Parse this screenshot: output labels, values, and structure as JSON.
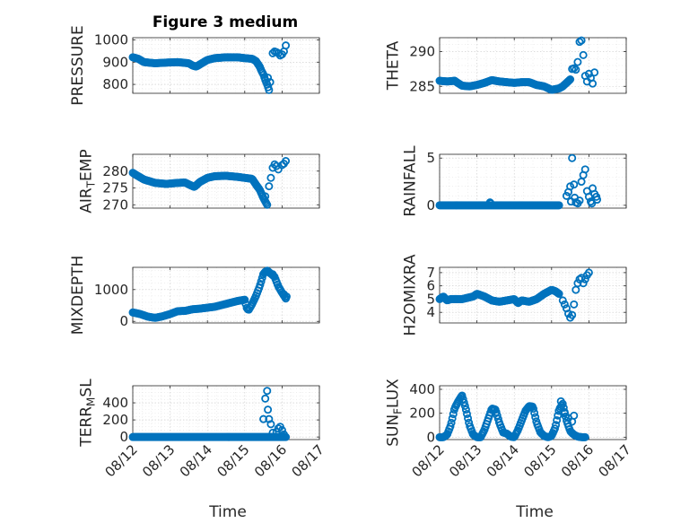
{
  "figure_title": "Figure 3 medium",
  "colors": {
    "marker": "#0072BD",
    "axis": "#262626"
  },
  "chart_data": [
    {
      "type": "scatter",
      "name": "pressure",
      "ylabel": "PRESSURE",
      "title": "Figure 3 medium",
      "ylim": [
        760,
        1010
      ],
      "yticks": [
        800,
        900,
        1000
      ],
      "ytick_labels": [
        "800",
        "900",
        "1000"
      ],
      "xlim_days": [
        0,
        5
      ],
      "xticks": [
        0,
        1,
        2,
        3,
        4,
        5
      ],
      "xtick_labels": [],
      "xlabel": "",
      "grid": true,
      "knots": [
        [
          0,
          922
        ],
        [
          0.15,
          915
        ],
        [
          0.3,
          900
        ],
        [
          0.6,
          895
        ],
        [
          0.9,
          898
        ],
        [
          1.2,
          900
        ],
        [
          1.5,
          895
        ],
        [
          1.6,
          885
        ],
        [
          1.7,
          880
        ],
        [
          1.85,
          895
        ],
        [
          2.0,
          910
        ],
        [
          2.2,
          918
        ],
        [
          2.5,
          922
        ],
        [
          2.8,
          922
        ],
        [
          3.0,
          918
        ],
        [
          3.2,
          915
        ],
        [
          3.3,
          905
        ],
        [
          3.4,
          880
        ],
        [
          3.45,
          860
        ],
        [
          3.5,
          845
        ],
        [
          3.55,
          820
        ],
        [
          3.6,
          800
        ],
        [
          3.65,
          775
        ]
      ],
      "n": 150,
      "extra_points": [
        [
          3.62,
          830
        ],
        [
          3.68,
          810
        ],
        [
          3.75,
          940
        ],
        [
          3.8,
          948
        ],
        [
          3.85,
          945
        ],
        [
          3.9,
          940
        ],
        [
          3.95,
          930
        ],
        [
          4.0,
          935
        ],
        [
          4.05,
          948
        ],
        [
          4.1,
          975
        ]
      ]
    },
    {
      "type": "scatter",
      "name": "theta",
      "ylabel": "THETA",
      "ylim": [
        284,
        292
      ],
      "yticks": [
        285,
        290
      ],
      "ytick_labels": [
        "285",
        "290"
      ],
      "xlim_days": [
        0,
        5
      ],
      "xticks": [
        0,
        1,
        2,
        3,
        4,
        5
      ],
      "xtick_labels": [],
      "xlabel": "",
      "grid": true,
      "knots": [
        [
          0,
          285.8
        ],
        [
          0.2,
          285.7
        ],
        [
          0.4,
          285.8
        ],
        [
          0.6,
          285.1
        ],
        [
          0.8,
          285.0
        ],
        [
          1.0,
          285.2
        ],
        [
          1.2,
          285.5
        ],
        [
          1.4,
          285.9
        ],
        [
          1.6,
          285.7
        ],
        [
          1.8,
          285.6
        ],
        [
          2.0,
          285.5
        ],
        [
          2.2,
          285.6
        ],
        [
          2.4,
          285.6
        ],
        [
          2.6,
          285.2
        ],
        [
          2.8,
          285.0
        ],
        [
          3.0,
          284.5
        ],
        [
          3.2,
          284.7
        ],
        [
          3.3,
          285.0
        ],
        [
          3.4,
          285.5
        ],
        [
          3.5,
          286.0
        ]
      ],
      "n": 150,
      "extra_points": [
        [
          3.55,
          287.5
        ],
        [
          3.6,
          287.6
        ],
        [
          3.65,
          287.4
        ],
        [
          3.7,
          288.5
        ],
        [
          3.75,
          291.4
        ],
        [
          3.8,
          291.6
        ],
        [
          3.85,
          289.5
        ],
        [
          3.9,
          286.5
        ],
        [
          3.95,
          285.7
        ],
        [
          4.0,
          286.8
        ],
        [
          4.05,
          286.2
        ],
        [
          4.1,
          285.4
        ],
        [
          4.15,
          287.0
        ]
      ]
    },
    {
      "type": "scatter",
      "name": "air_temp",
      "ylabel": "AIR_TEMP",
      "ylim": [
        269,
        285
      ],
      "yticks": [
        270,
        275,
        280
      ],
      "ytick_labels": [
        "270",
        "275",
        "280"
      ],
      "xlim_days": [
        0,
        5
      ],
      "xticks": [
        0,
        1,
        2,
        3,
        4,
        5
      ],
      "xtick_labels": [],
      "xlabel": "",
      "grid": true,
      "knots": [
        [
          0,
          279.5
        ],
        [
          0.1,
          278.8
        ],
        [
          0.3,
          277.5
        ],
        [
          0.6,
          276.5
        ],
        [
          0.9,
          276.2
        ],
        [
          1.2,
          276.5
        ],
        [
          1.4,
          276.6
        ],
        [
          1.55,
          275.8
        ],
        [
          1.65,
          275.3
        ],
        [
          1.8,
          276.8
        ],
        [
          2.0,
          278.0
        ],
        [
          2.2,
          278.5
        ],
        [
          2.5,
          278.6
        ],
        [
          2.8,
          278.3
        ],
        [
          3.0,
          278.0
        ],
        [
          3.2,
          277.7
        ],
        [
          3.3,
          276.0
        ],
        [
          3.4,
          274.5
        ],
        [
          3.5,
          272.0
        ],
        [
          3.6,
          270.0
        ]
      ],
      "n": 150,
      "extra_points": [
        [
          3.55,
          272.5
        ],
        [
          3.65,
          275.5
        ],
        [
          3.7,
          278.0
        ],
        [
          3.75,
          281.0
        ],
        [
          3.8,
          282.0
        ],
        [
          3.85,
          281.5
        ],
        [
          3.9,
          280.5
        ],
        [
          4.0,
          281.8
        ],
        [
          4.05,
          282.2
        ],
        [
          4.1,
          283.0
        ]
      ]
    },
    {
      "type": "scatter",
      "name": "rainfall",
      "ylabel": "RAINFALL",
      "ylim": [
        -0.3,
        5.4
      ],
      "yticks": [
        0,
        5
      ],
      "ytick_labels": [
        "0",
        "5"
      ],
      "xlim_days": [
        0,
        5
      ],
      "xticks": [
        0,
        1,
        2,
        3,
        4,
        5
      ],
      "xtick_labels": [],
      "xlabel": "",
      "grid": true,
      "knots": [
        [
          0,
          0
        ],
        [
          3.2,
          0
        ]
      ],
      "n": 140,
      "extra_points": [
        [
          1.35,
          0.3
        ],
        [
          1.37,
          0.2
        ],
        [
          3.4,
          1.0
        ],
        [
          3.45,
          1.4
        ],
        [
          3.5,
          2.0
        ],
        [
          3.52,
          0.4
        ],
        [
          3.55,
          5.0
        ],
        [
          3.6,
          2.2
        ],
        [
          3.62,
          0.8
        ],
        [
          3.65,
          0.3
        ],
        [
          3.7,
          0.2
        ],
        [
          3.75,
          0.5
        ],
        [
          3.8,
          2.5
        ],
        [
          3.85,
          3.2
        ],
        [
          3.9,
          3.8
        ],
        [
          3.95,
          1.5
        ],
        [
          4.0,
          0.9
        ],
        [
          4.05,
          0.4
        ],
        [
          4.08,
          0.2
        ],
        [
          4.1,
          1.8
        ],
        [
          4.15,
          1.2
        ],
        [
          4.2,
          0.9
        ],
        [
          4.22,
          0.6
        ]
      ]
    },
    {
      "type": "scatter",
      "name": "mixdepth",
      "ylabel": "MIXDEPTH",
      "ylim": [
        -50,
        1700
      ],
      "yticks": [
        0,
        1000
      ],
      "ytick_labels": [
        "0",
        "1000"
      ],
      "xlim_days": [
        0,
        5
      ],
      "xticks": [
        0,
        1,
        2,
        3,
        4,
        5
      ],
      "xtick_labels": [],
      "xlabel": "",
      "grid": true,
      "knots": [
        [
          0,
          280
        ],
        [
          0.2,
          230
        ],
        [
          0.4,
          150
        ],
        [
          0.6,
          110
        ],
        [
          0.8,
          160
        ],
        [
          1.0,
          230
        ],
        [
          1.2,
          320
        ],
        [
          1.4,
          330
        ],
        [
          1.6,
          380
        ],
        [
          1.8,
          400
        ],
        [
          2.0,
          430
        ],
        [
          2.2,
          460
        ],
        [
          2.4,
          520
        ],
        [
          2.6,
          580
        ],
        [
          2.8,
          640
        ],
        [
          3.0,
          680
        ],
        [
          3.05,
          430
        ],
        [
          3.1,
          350
        ],
        [
          3.2,
          550
        ],
        [
          3.3,
          800
        ],
        [
          3.4,
          1100
        ],
        [
          3.5,
          1500
        ],
        [
          3.6,
          1600
        ],
        [
          3.7,
          1500
        ],
        [
          3.8,
          1400
        ],
        [
          3.9,
          1100
        ],
        [
          4.0,
          900
        ],
        [
          4.1,
          720
        ]
      ],
      "n": 150,
      "extra_points": [
        [
          3.55,
          1560
        ],
        [
          3.75,
          1480
        ],
        [
          4.05,
          850
        ],
        [
          4.12,
          780
        ]
      ]
    },
    {
      "type": "scatter",
      "name": "h2omixra",
      "ylabel": "H2OMIXRA",
      "ylim": [
        3.2,
        7.4
      ],
      "yticks": [
        4,
        5,
        6,
        7
      ],
      "ytick_labels": [
        "4",
        "5",
        "6",
        "7"
      ],
      "xlim_days": [
        0,
        5
      ],
      "xticks": [
        0,
        1,
        2,
        3,
        4,
        5
      ],
      "xtick_labels": [],
      "xlabel": "",
      "grid": true,
      "knots": [
        [
          0,
          5.0
        ],
        [
          0.1,
          5.2
        ],
        [
          0.2,
          4.9
        ],
        [
          0.3,
          5.0
        ],
        [
          0.6,
          5.0
        ],
        [
          0.9,
          5.2
        ],
        [
          1.0,
          5.4
        ],
        [
          1.2,
          5.2
        ],
        [
          1.4,
          4.9
        ],
        [
          1.6,
          4.8
        ],
        [
          1.8,
          4.9
        ],
        [
          2.0,
          5.0
        ],
        [
          2.1,
          4.7
        ],
        [
          2.2,
          4.9
        ],
        [
          2.4,
          4.8
        ],
        [
          2.6,
          5.0
        ],
        [
          2.8,
          5.4
        ],
        [
          3.0,
          5.7
        ],
        [
          3.1,
          5.6
        ],
        [
          3.2,
          5.4
        ]
      ],
      "n": 150,
      "extra_points": [
        [
          3.3,
          4.9
        ],
        [
          3.35,
          4.6
        ],
        [
          3.4,
          4.3
        ],
        [
          3.45,
          3.9
        ],
        [
          3.5,
          3.6
        ],
        [
          3.55,
          3.8
        ],
        [
          3.6,
          4.6
        ],
        [
          3.65,
          5.7
        ],
        [
          3.7,
          6.2
        ],
        [
          3.75,
          6.5
        ],
        [
          3.8,
          6.6
        ],
        [
          3.85,
          6.2
        ],
        [
          3.9,
          6.5
        ],
        [
          3.95,
          6.8
        ],
        [
          4.0,
          7.0
        ]
      ]
    },
    {
      "type": "scatter",
      "name": "terr_msl",
      "ylabel": "TERR_MSL",
      "ylim": [
        -30,
        600
      ],
      "yticks": [
        0,
        200,
        400
      ],
      "ytick_labels": [
        "0",
        "200",
        "400"
      ],
      "xlim_days": [
        0,
        5
      ],
      "xticks": [
        0,
        1,
        2,
        3,
        4,
        5
      ],
      "xtick_labels": [
        "08/12",
        "08/13",
        "08/14",
        "08/15",
        "08/16",
        "08/17"
      ],
      "xlabel": "Time",
      "grid": true,
      "knots": [
        [
          0,
          0
        ],
        [
          4.1,
          0
        ]
      ],
      "n": 170,
      "extra_points": [
        [
          3.5,
          210
        ],
        [
          3.55,
          450
        ],
        [
          3.6,
          540
        ],
        [
          3.62,
          320
        ],
        [
          3.65,
          210
        ],
        [
          3.7,
          150
        ],
        [
          3.75,
          50
        ],
        [
          3.85,
          60
        ],
        [
          3.9,
          100
        ],
        [
          3.95,
          120
        ],
        [
          4.0,
          80
        ],
        [
          4.05,
          30
        ]
      ]
    },
    {
      "type": "scatter",
      "name": "sun_flux",
      "ylabel": "SUN_FLUX",
      "ylim": [
        -20,
        430
      ],
      "yticks": [
        0,
        200,
        400
      ],
      "ytick_labels": [
        "0",
        "200",
        "400"
      ],
      "xlim_days": [
        0,
        5
      ],
      "xticks": [
        0,
        1,
        2,
        3,
        4,
        5
      ],
      "xtick_labels": [
        "08/12",
        "08/13",
        "08/14",
        "08/15",
        "08/16",
        "08/17"
      ],
      "xlabel": "Time",
      "grid": true,
      "knots": [
        [
          0,
          0
        ],
        [
          0.1,
          0
        ],
        [
          0.2,
          20
        ],
        [
          0.3,
          100
        ],
        [
          0.4,
          240
        ],
        [
          0.5,
          300
        ],
        [
          0.6,
          350
        ],
        [
          0.7,
          240
        ],
        [
          0.8,
          100
        ],
        [
          0.9,
          20
        ],
        [
          1.0,
          0
        ],
        [
          1.1,
          0
        ],
        [
          1.2,
          60
        ],
        [
          1.3,
          150
        ],
        [
          1.4,
          240
        ],
        [
          1.5,
          230
        ],
        [
          1.6,
          120
        ],
        [
          1.7,
          40
        ],
        [
          1.8,
          30
        ],
        [
          1.9,
          5
        ],
        [
          2.0,
          0
        ],
        [
          2.1,
          60
        ],
        [
          2.2,
          140
        ],
        [
          2.3,
          220
        ],
        [
          2.4,
          260
        ],
        [
          2.5,
          255
        ],
        [
          2.6,
          120
        ],
        [
          2.7,
          40
        ],
        [
          2.8,
          10
        ],
        [
          2.9,
          0
        ],
        [
          3.0,
          10
        ],
        [
          3.1,
          80
        ],
        [
          3.2,
          230
        ],
        [
          3.3,
          280
        ],
        [
          3.4,
          140
        ],
        [
          3.5,
          50
        ],
        [
          3.6,
          20
        ],
        [
          3.7,
          5
        ],
        [
          3.8,
          0
        ],
        [
          3.9,
          0
        ]
      ],
      "n": 150,
      "extra_points": [
        [
          3.25,
          300
        ],
        [
          3.35,
          200
        ],
        [
          3.45,
          160
        ],
        [
          3.55,
          130
        ],
        [
          3.6,
          180
        ]
      ]
    }
  ]
}
